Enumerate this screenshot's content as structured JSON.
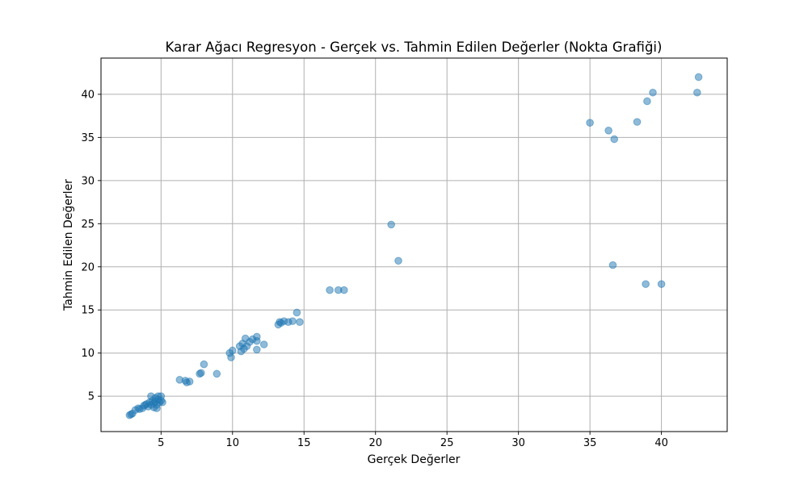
{
  "chart_data": {
    "type": "scatter",
    "title": "Karar Ağacı Regresyon - Gerçek vs. Tahmin Edilen Değerler (Nokta Grafiği)",
    "xlabel": "Gerçek Değerler",
    "ylabel": "Tahmin Edilen Değerler",
    "xlim": [
      0.8,
      44.6
    ],
    "ylim": [
      0.9,
      44.2
    ],
    "xticks": [
      5,
      10,
      15,
      20,
      25,
      30,
      35,
      40
    ],
    "yticks": [
      5,
      10,
      15,
      20,
      25,
      30,
      35,
      40
    ],
    "grid": true,
    "legend": "none",
    "marker_color": "#1f77b4",
    "marker_alpha": 0.5,
    "points": [
      {
        "x": 2.8,
        "y": 2.8
      },
      {
        "x": 2.9,
        "y": 2.9
      },
      {
        "x": 3.0,
        "y": 3.0
      },
      {
        "x": 3.2,
        "y": 3.4
      },
      {
        "x": 3.4,
        "y": 3.6
      },
      {
        "x": 3.5,
        "y": 3.5
      },
      {
        "x": 3.7,
        "y": 3.6
      },
      {
        "x": 3.8,
        "y": 3.9
      },
      {
        "x": 3.9,
        "y": 4.0
      },
      {
        "x": 4.0,
        "y": 4.1
      },
      {
        "x": 4.1,
        "y": 3.8
      },
      {
        "x": 4.2,
        "y": 4.3
      },
      {
        "x": 4.3,
        "y": 5.0
      },
      {
        "x": 4.3,
        "y": 4.0
      },
      {
        "x": 4.4,
        "y": 4.5
      },
      {
        "x": 4.5,
        "y": 3.7
      },
      {
        "x": 4.5,
        "y": 4.2
      },
      {
        "x": 4.6,
        "y": 4.8
      },
      {
        "x": 4.6,
        "y": 4.4
      },
      {
        "x": 4.7,
        "y": 3.6
      },
      {
        "x": 4.7,
        "y": 4.0
      },
      {
        "x": 4.8,
        "y": 5.0
      },
      {
        "x": 4.8,
        "y": 4.6
      },
      {
        "x": 4.9,
        "y": 4.3
      },
      {
        "x": 5.0,
        "y": 5.0
      },
      {
        "x": 5.0,
        "y": 4.5
      },
      {
        "x": 5.1,
        "y": 4.3
      },
      {
        "x": 6.3,
        "y": 6.9
      },
      {
        "x": 6.7,
        "y": 6.8
      },
      {
        "x": 6.8,
        "y": 6.6
      },
      {
        "x": 7.0,
        "y": 6.7
      },
      {
        "x": 7.7,
        "y": 7.6
      },
      {
        "x": 7.8,
        "y": 7.7
      },
      {
        "x": 8.0,
        "y": 8.7
      },
      {
        "x": 8.9,
        "y": 7.6
      },
      {
        "x": 9.8,
        "y": 10.0
      },
      {
        "x": 9.9,
        "y": 9.5
      },
      {
        "x": 10.0,
        "y": 10.3
      },
      {
        "x": 10.5,
        "y": 10.8
      },
      {
        "x": 10.6,
        "y": 10.2
      },
      {
        "x": 10.7,
        "y": 11.1
      },
      {
        "x": 10.8,
        "y": 10.5
      },
      {
        "x": 10.9,
        "y": 11.7
      },
      {
        "x": 11.0,
        "y": 10.8
      },
      {
        "x": 11.2,
        "y": 11.3
      },
      {
        "x": 11.4,
        "y": 11.6
      },
      {
        "x": 11.7,
        "y": 11.9
      },
      {
        "x": 11.7,
        "y": 11.4
      },
      {
        "x": 11.7,
        "y": 10.4
      },
      {
        "x": 12.2,
        "y": 11.0
      },
      {
        "x": 13.2,
        "y": 13.3
      },
      {
        "x": 13.3,
        "y": 13.6
      },
      {
        "x": 13.4,
        "y": 13.5
      },
      {
        "x": 13.6,
        "y": 13.7
      },
      {
        "x": 13.9,
        "y": 13.6
      },
      {
        "x": 14.2,
        "y": 13.7
      },
      {
        "x": 14.5,
        "y": 14.7
      },
      {
        "x": 14.7,
        "y": 13.6
      },
      {
        "x": 16.8,
        "y": 17.3
      },
      {
        "x": 17.4,
        "y": 17.3
      },
      {
        "x": 17.8,
        "y": 17.3
      },
      {
        "x": 21.1,
        "y": 24.9
      },
      {
        "x": 21.6,
        "y": 20.7
      },
      {
        "x": 35.0,
        "y": 36.7
      },
      {
        "x": 36.3,
        "y": 35.8
      },
      {
        "x": 36.6,
        "y": 20.2
      },
      {
        "x": 36.7,
        "y": 34.8
      },
      {
        "x": 38.3,
        "y": 36.8
      },
      {
        "x": 38.9,
        "y": 18.0
      },
      {
        "x": 39.0,
        "y": 39.2
      },
      {
        "x": 39.4,
        "y": 40.2
      },
      {
        "x": 40.0,
        "y": 18.0
      },
      {
        "x": 42.5,
        "y": 40.2
      },
      {
        "x": 42.6,
        "y": 42.0
      }
    ]
  }
}
